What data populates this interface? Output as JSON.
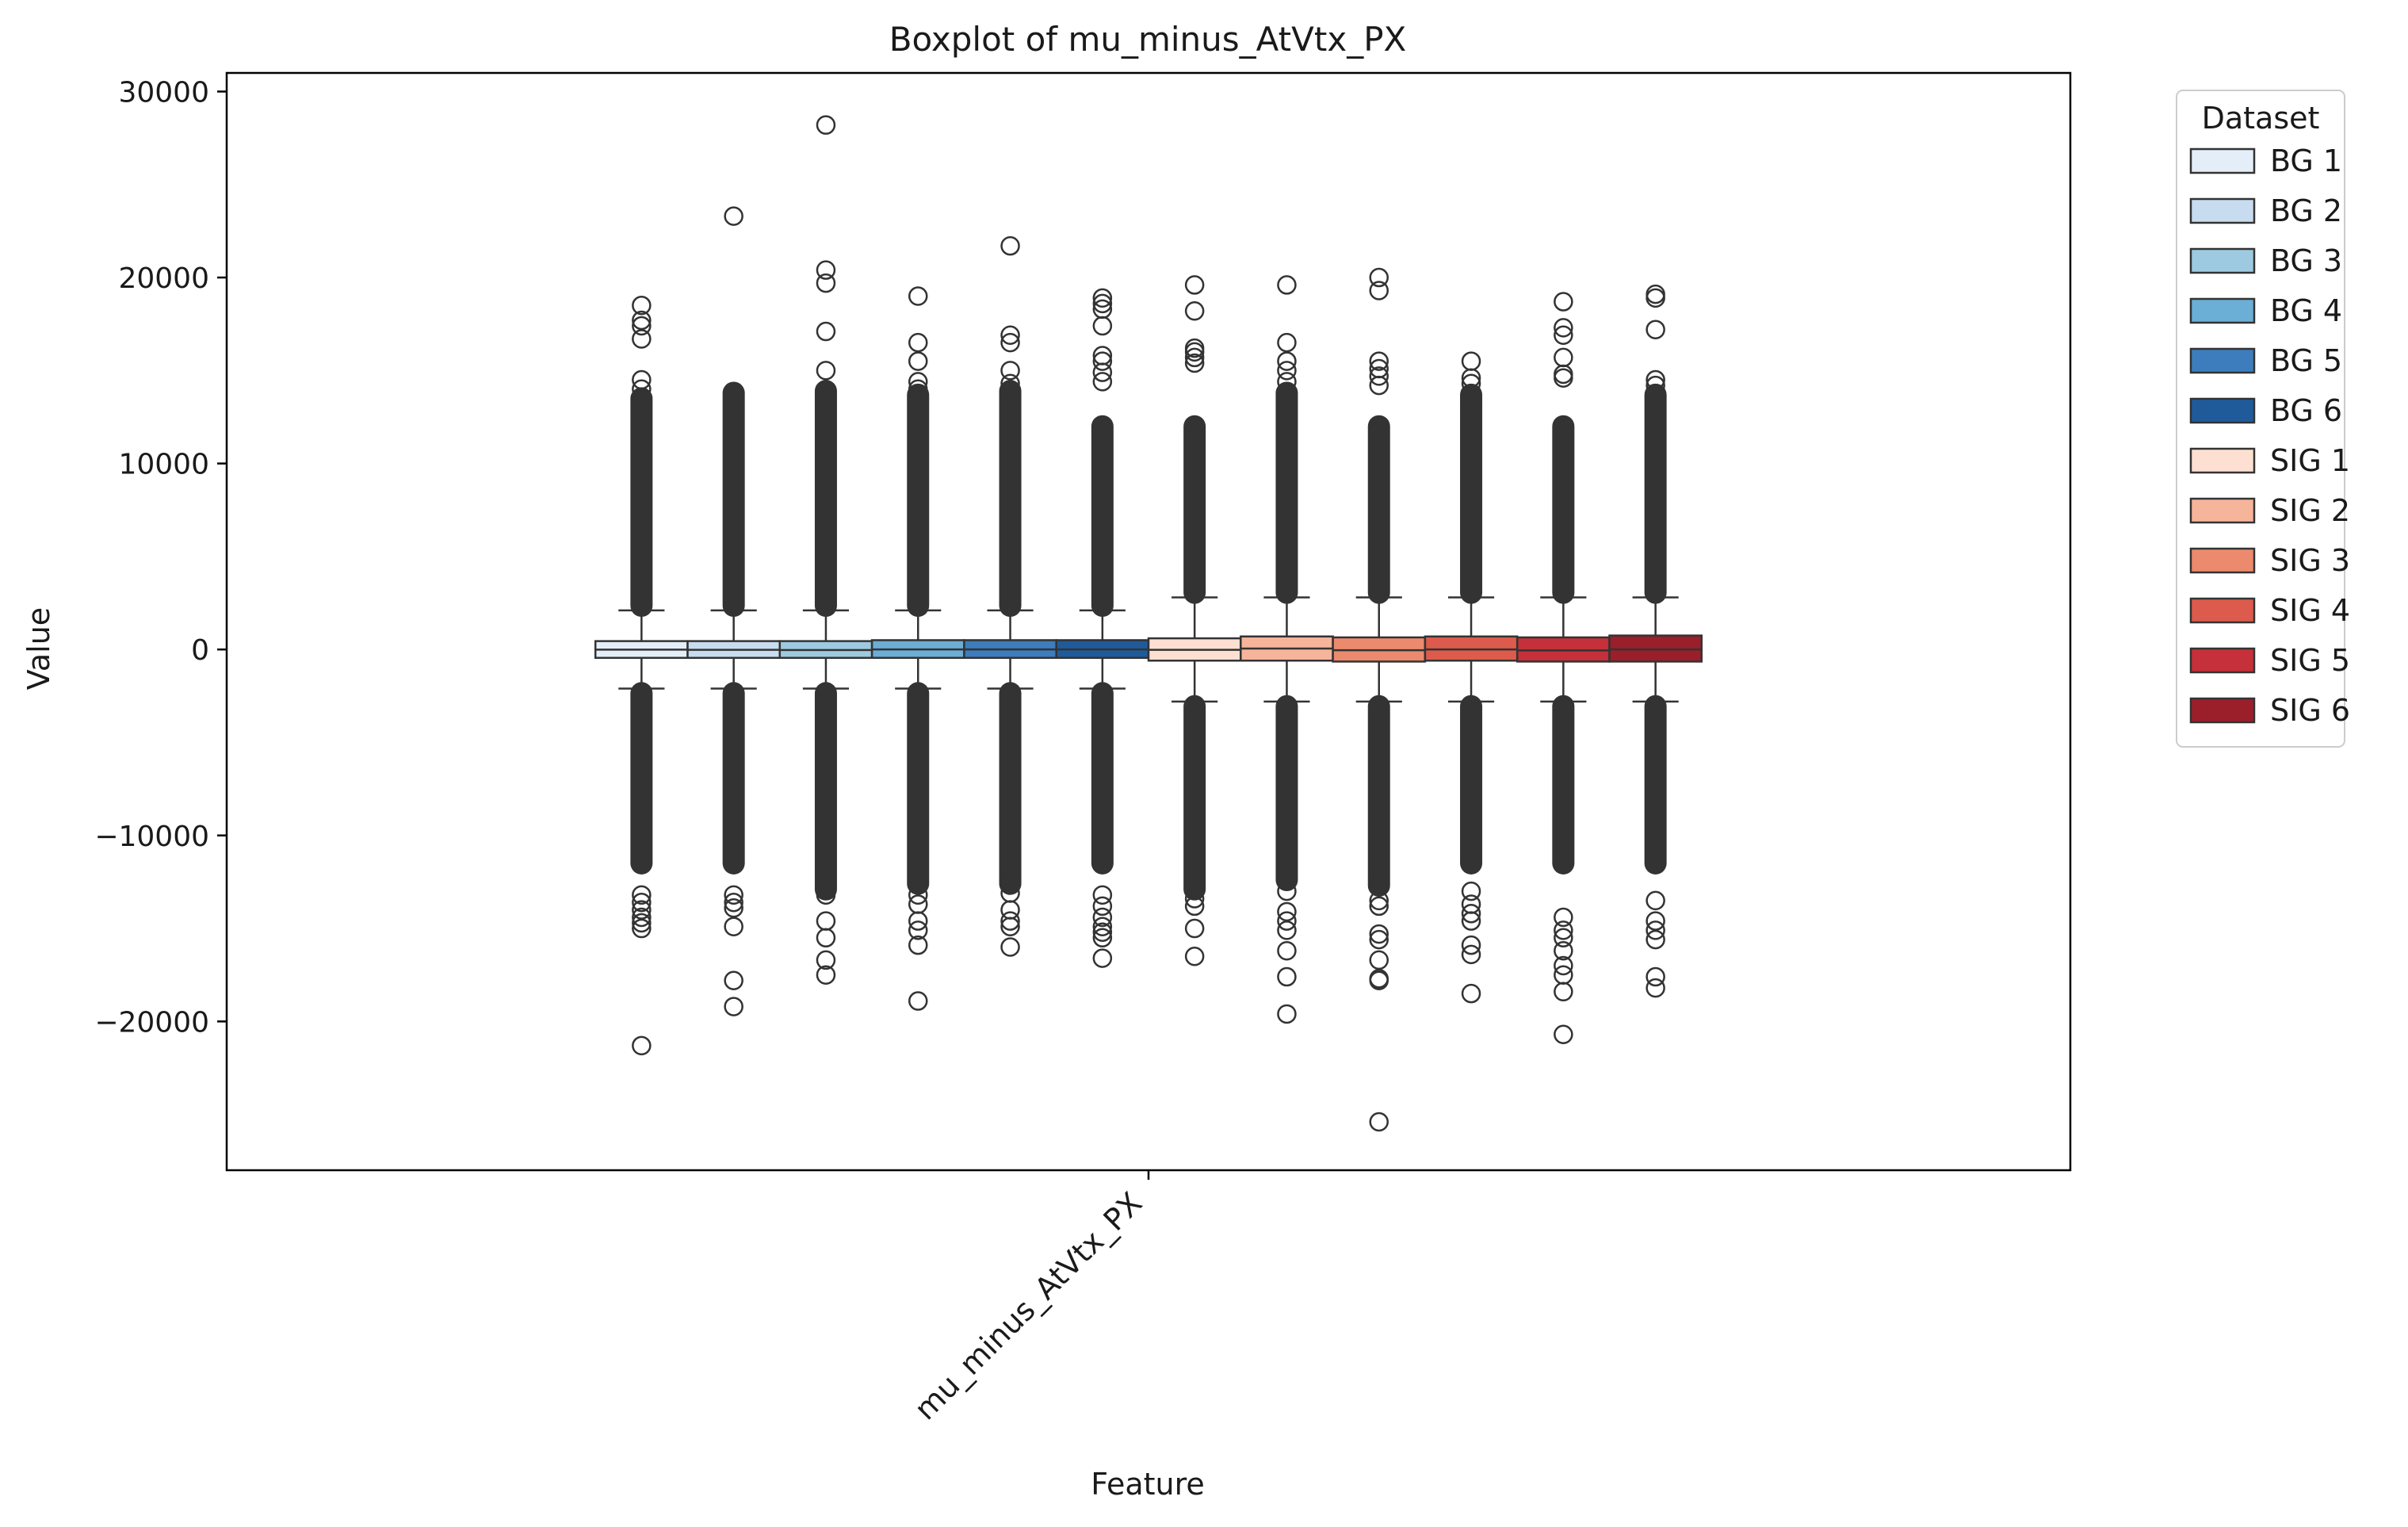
{
  "chart_data": {
    "type": "box",
    "title": "Boxplot of mu_minus_AtVtx_PX",
    "xlabel": "Feature",
    "ylabel": "Value",
    "categories": [
      "mu_minus_AtVtx_PX"
    ],
    "ylim": [
      -28000,
      31000
    ],
    "yticks": [
      -20000,
      -10000,
      0,
      10000,
      20000,
      30000
    ],
    "ytick_labels": [
      "−20000",
      "−10000",
      "0",
      "10000",
      "20000",
      "30000"
    ],
    "grid": false,
    "legend": {
      "title": "Dataset",
      "placement": "outside-right"
    },
    "series": [
      {
        "name": "BG 1",
        "color": "#e3eef8",
        "q1": -450,
        "median": -10,
        "q3": 450,
        "whisker_low": -2100,
        "whisker_high": 2100,
        "outliers_high": [
          18500,
          17700,
          17400,
          16700,
          14500,
          14000,
          13500
        ],
        "outliers_low": [
          -13200,
          -13600,
          -14000,
          -14400,
          -14700,
          -15000,
          -21300
        ]
      },
      {
        "name": "BG 2",
        "color": "#c7dcef",
        "q1": -450,
        "median": -20,
        "q3": 450,
        "whisker_low": -2100,
        "whisker_high": 2100,
        "outliers_high": [
          23300,
          13800,
          13700,
          12900,
          12500
        ],
        "outliers_low": [
          -13200,
          -13600,
          -13900,
          -14900,
          -17800,
          -19200
        ]
      },
      {
        "name": "BG 3",
        "color": "#9ecae1",
        "q1": -450,
        "median": -30,
        "q3": 450,
        "whisker_low": -2100,
        "whisker_high": 2100,
        "outliers_high": [
          28200,
          20400,
          19700,
          17100,
          15000,
          13900,
          13300,
          12600
        ],
        "outliers_low": [
          -12900,
          -13200,
          -14600,
          -15500,
          -16700,
          -17500
        ]
      },
      {
        "name": "BG 4",
        "color": "#6baed6",
        "q1": -450,
        "median": 0,
        "q3": 500,
        "whisker_low": -2100,
        "whisker_high": 2100,
        "outliers_high": [
          19000,
          16500,
          15500,
          14400,
          14000,
          13700
        ],
        "outliers_low": [
          -12600,
          -13200,
          -13700,
          -14600,
          -15100,
          -15900,
          -18900
        ]
      },
      {
        "name": "BG 5",
        "color": "#3d7dbd",
        "q1": -450,
        "median": 0,
        "q3": 500,
        "whisker_low": -2100,
        "whisker_high": 2100,
        "outliers_high": [
          21700,
          16900,
          16500,
          15000,
          14300,
          13900
        ],
        "outliers_low": [
          -12600,
          -13100,
          -14000,
          -14600,
          -14900,
          -16000
        ]
      },
      {
        "name": "BG 6",
        "color": "#1f5b9b",
        "q1": -450,
        "median": 0,
        "q3": 500,
        "whisker_low": -2100,
        "whisker_high": 2100,
        "outliers_high": [
          18900,
          18600,
          18300,
          17400,
          15800,
          15500,
          14900,
          14400
        ],
        "outliers_low": [
          -13200,
          -13800,
          -14400,
          -14900,
          -15200,
          -15500,
          -16600
        ]
      },
      {
        "name": "SIG 1",
        "color": "#fde0d2",
        "q1": -600,
        "median": -20,
        "q3": 600,
        "whisker_low": -2800,
        "whisker_high": 2800,
        "outliers_high": [
          19600,
          18200,
          16200,
          16000,
          15700,
          15400
        ],
        "outliers_low": [
          -12900,
          -13400,
          -13800,
          -15000,
          -16500
        ]
      },
      {
        "name": "SIG 2",
        "color": "#f6b49a",
        "q1": -600,
        "median": 50,
        "q3": 700,
        "whisker_low": -2800,
        "whisker_high": 2800,
        "outliers_high": [
          19600,
          16500,
          15500,
          15000,
          14400,
          13800
        ],
        "outliers_low": [
          -12400,
          -13000,
          -14100,
          -14600,
          -15100,
          -16200,
          -17600,
          -19600
        ]
      },
      {
        "name": "SIG 3",
        "color": "#ec8a6e",
        "q1": -650,
        "median": -40,
        "q3": 650,
        "whisker_low": -2800,
        "whisker_high": 2800,
        "outliers_high": [
          20000,
          19300,
          15500,
          15100,
          14700,
          14200
        ],
        "outliers_low": [
          -12700,
          -13500,
          -13800,
          -15300,
          -15600,
          -16700,
          -17700,
          -17800,
          -25400
        ]
      },
      {
        "name": "SIG 4",
        "color": "#dc5b4c",
        "q1": -600,
        "median": 0,
        "q3": 700,
        "whisker_low": -2800,
        "whisker_high": 2800,
        "outliers_high": [
          15500,
          14600,
          14300,
          13700,
          13300
        ],
        "outliers_low": [
          -13000,
          -13700,
          -14200,
          -14600,
          -15900,
          -16400,
          -18500
        ]
      },
      {
        "name": "SIG 5",
        "color": "#c5303a",
        "q1": -650,
        "median": -50,
        "q3": 650,
        "whisker_low": -2800,
        "whisker_high": 2800,
        "outliers_high": [
          18700,
          17300,
          16900,
          15700,
          14800,
          14600
        ],
        "outliers_low": [
          -14400,
          -15100,
          -15500,
          -16200,
          -17000,
          -17500,
          -18400,
          -20700
        ]
      },
      {
        "name": "SIG 6",
        "color": "#9b1e2b",
        "q1": -650,
        "median": 0,
        "q3": 750,
        "whisker_low": -2800,
        "whisker_high": 2800,
        "outliers_high": [
          19100,
          18900,
          17200,
          14500,
          14200,
          13700
        ],
        "outliers_low": [
          -13500,
          -14600,
          -15100,
          -15600,
          -17600,
          -18200
        ]
      }
    ]
  }
}
